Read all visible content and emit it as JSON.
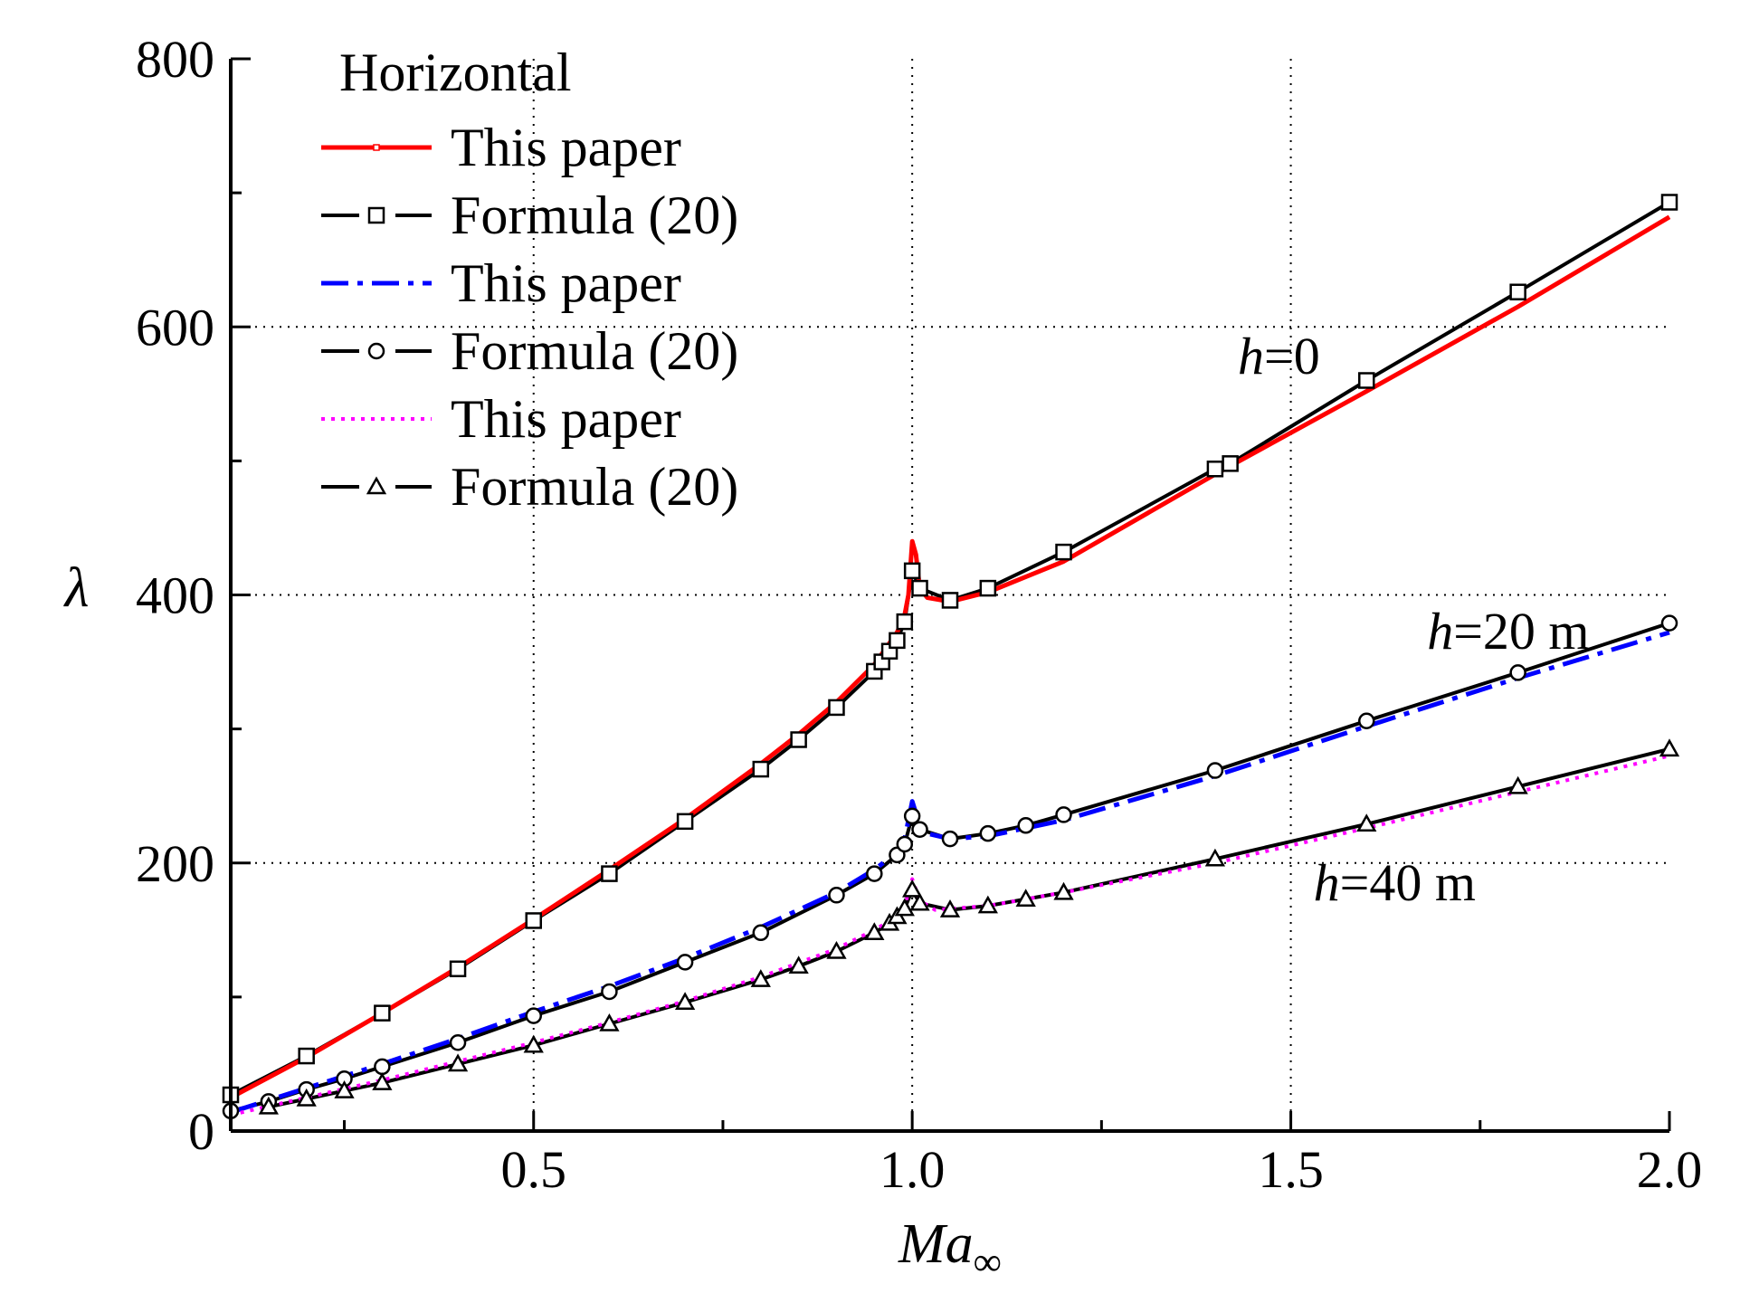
{
  "chart_data": {
    "type": "line",
    "xlabel": "Ma∞",
    "ylabel": "λ",
    "xlim": [
      0.1,
      2.0
    ],
    "ylim": [
      0,
      800
    ],
    "x_ticks": [
      "0.5",
      "1.0",
      "1.5",
      "2.0"
    ],
    "y_ticks": [
      "0",
      "200",
      "400",
      "600",
      "800"
    ],
    "grid": "dotted, at x = 0.5, 1.0, 1.5 and y = 200, 400, 600",
    "legend": {
      "title": "Horizontal",
      "placement": "top-left",
      "entries": [
        {
          "label": "This paper",
          "series": 0
        },
        {
          "label": "Formula (20)",
          "series": 1
        },
        {
          "label": "This paper",
          "series": 2
        },
        {
          "label": "Formula (20)",
          "series": 3
        },
        {
          "label": "This paper",
          "series": 4
        },
        {
          "label": "Formula (20)",
          "series": 5
        }
      ]
    },
    "annotations": [
      {
        "italic": "h",
        "rest": "=0",
        "x": 1.43,
        "y": 565
      },
      {
        "italic": "h",
        "rest": "=20 m",
        "x": 1.68,
        "y": 360
      },
      {
        "italic": "h",
        "rest": "=40 m",
        "x": 1.53,
        "y": 172
      }
    ],
    "series": [
      {
        "group": "h=0",
        "style": "solid",
        "color": "#ff0000",
        "marker": "none",
        "points": [
          [
            0.1,
            25
          ],
          [
            0.2,
            55
          ],
          [
            0.3,
            88
          ],
          [
            0.4,
            122
          ],
          [
            0.5,
            158
          ],
          [
            0.6,
            195
          ],
          [
            0.7,
            233
          ],
          [
            0.8,
            274
          ],
          [
            0.85,
            296
          ],
          [
            0.9,
            320
          ],
          [
            0.95,
            348
          ],
          [
            0.98,
            372
          ],
          [
            0.99,
            385
          ],
          [
            0.995,
            400
          ],
          [
            1.0,
            440
          ],
          [
            1.005,
            430
          ],
          [
            1.01,
            405
          ],
          [
            1.02,
            398
          ],
          [
            1.05,
            395
          ],
          [
            1.1,
            402
          ],
          [
            1.2,
            425
          ],
          [
            1.4,
            490
          ],
          [
            1.6,
            552
          ],
          [
            1.8,
            615
          ],
          [
            2.0,
            682
          ]
        ]
      },
      {
        "group": "h=0",
        "style": "dash",
        "color": "#000000",
        "marker": "square",
        "points": [
          [
            0.1,
            27
          ],
          [
            0.2,
            56
          ],
          [
            0.3,
            88
          ],
          [
            0.4,
            121
          ],
          [
            0.5,
            157
          ],
          [
            0.6,
            192
          ],
          [
            0.7,
            231
          ],
          [
            0.8,
            270
          ],
          [
            0.85,
            292
          ],
          [
            0.9,
            316
          ],
          [
            0.95,
            343
          ],
          [
            0.96,
            350
          ],
          [
            0.97,
            358
          ],
          [
            0.98,
            366
          ],
          [
            0.99,
            380
          ],
          [
            1.0,
            418
          ],
          [
            1.01,
            405
          ],
          [
            1.05,
            396
          ],
          [
            1.1,
            405
          ],
          [
            1.2,
            432
          ],
          [
            1.4,
            494
          ],
          [
            1.42,
            498
          ],
          [
            1.6,
            560
          ],
          [
            1.8,
            626
          ],
          [
            2.0,
            693
          ]
        ]
      },
      {
        "group": "h=20 m",
        "style": "dashdot",
        "color": "#0000ff",
        "marker": "none",
        "points": [
          [
            0.1,
            14
          ],
          [
            0.2,
            32
          ],
          [
            0.3,
            50
          ],
          [
            0.4,
            69
          ],
          [
            0.5,
            89
          ],
          [
            0.6,
            108
          ],
          [
            0.7,
            129
          ],
          [
            0.8,
            152
          ],
          [
            0.9,
            178
          ],
          [
            0.95,
            195
          ],
          [
            0.98,
            208
          ],
          [
            0.99,
            218
          ],
          [
            1.0,
            246
          ],
          [
            1.01,
            228
          ],
          [
            1.02,
            222
          ],
          [
            1.05,
            218
          ],
          [
            1.1,
            220
          ],
          [
            1.2,
            232
          ],
          [
            1.4,
            265
          ],
          [
            1.6,
            302
          ],
          [
            1.8,
            338
          ],
          [
            2.0,
            372
          ]
        ]
      },
      {
        "group": "h=20 m",
        "style": "dash",
        "color": "#000000",
        "marker": "circle",
        "points": [
          [
            0.1,
            15
          ],
          [
            0.15,
            22
          ],
          [
            0.2,
            31
          ],
          [
            0.25,
            39
          ],
          [
            0.3,
            48
          ],
          [
            0.4,
            66
          ],
          [
            0.5,
            86
          ],
          [
            0.6,
            104
          ],
          [
            0.7,
            126
          ],
          [
            0.8,
            148
          ],
          [
            0.9,
            176
          ],
          [
            0.95,
            192
          ],
          [
            0.98,
            206
          ],
          [
            0.99,
            214
          ],
          [
            1.0,
            235
          ],
          [
            1.01,
            225
          ],
          [
            1.05,
            218
          ],
          [
            1.1,
            222
          ],
          [
            1.15,
            228
          ],
          [
            1.2,
            236
          ],
          [
            1.4,
            269
          ],
          [
            1.6,
            306
          ],
          [
            1.8,
            342
          ],
          [
            2.0,
            379
          ]
        ]
      },
      {
        "group": "h=40 m",
        "style": "dot",
        "color": "#ff00ff",
        "marker": "none",
        "points": [
          [
            0.1,
            12
          ],
          [
            0.2,
            25
          ],
          [
            0.3,
            38
          ],
          [
            0.4,
            52
          ],
          [
            0.5,
            66
          ],
          [
            0.6,
            81
          ],
          [
            0.7,
            97
          ],
          [
            0.8,
            115
          ],
          [
            0.9,
            136
          ],
          [
            0.95,
            150
          ],
          [
            0.98,
            160
          ],
          [
            0.99,
            168
          ],
          [
            1.0,
            188
          ],
          [
            1.01,
            172
          ],
          [
            1.03,
            165
          ],
          [
            1.1,
            168
          ],
          [
            1.2,
            178
          ],
          [
            1.4,
            200
          ],
          [
            1.6,
            226
          ],
          [
            1.8,
            253
          ],
          [
            2.0,
            280
          ]
        ]
      },
      {
        "group": "h=40 m",
        "style": "dash",
        "color": "#000000",
        "marker": "triangle",
        "points": [
          [
            0.15,
            18
          ],
          [
            0.2,
            24
          ],
          [
            0.25,
            30
          ],
          [
            0.3,
            36
          ],
          [
            0.4,
            50
          ],
          [
            0.5,
            64
          ],
          [
            0.6,
            80
          ],
          [
            0.7,
            96
          ],
          [
            0.8,
            113
          ],
          [
            0.85,
            123
          ],
          [
            0.9,
            134
          ],
          [
            0.95,
            148
          ],
          [
            0.97,
            155
          ],
          [
            0.98,
            160
          ],
          [
            0.99,
            166
          ],
          [
            1.0,
            180
          ],
          [
            1.01,
            170
          ],
          [
            1.05,
            165
          ],
          [
            1.1,
            168
          ],
          [
            1.15,
            173
          ],
          [
            1.2,
            178
          ],
          [
            1.4,
            203
          ],
          [
            1.6,
            229
          ],
          [
            1.8,
            257
          ],
          [
            2.0,
            285
          ]
        ]
      }
    ]
  }
}
